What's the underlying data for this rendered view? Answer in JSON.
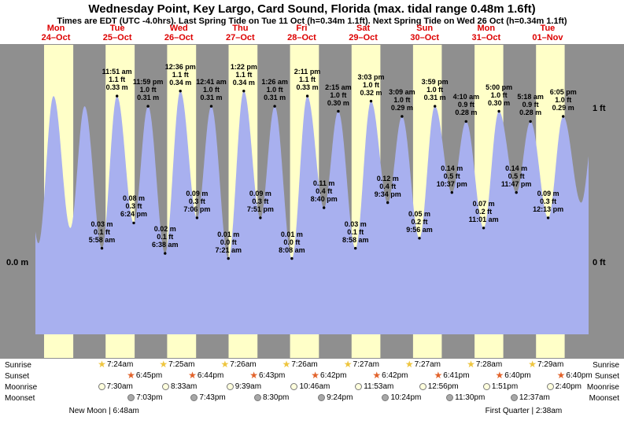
{
  "title": "Wednesday Point, Key Largo, Card Sound, Florida (max. tidal range 0.48m 1.6ft)",
  "subtitle": "Times are EDT (UTC -4.0hrs). Last Spring Tide on Tue 11 Oct (h=0.34m 1.1ft). Next Spring Tide on Wed 26 Oct (h=0.34m 1.1ft)",
  "colors": {
    "band_bg": "#8f8f8f",
    "daylight": "#ffffc8",
    "tide": "#a8b0ef",
    "day_label": "#dd0000",
    "almanac_bg": "#ffffff",
    "sunrise_icon": "#eec53e",
    "sunset_icon": "#e2622a",
    "moonrise_icon": "#ffffdd",
    "moonset_icon": "#a8a8a8"
  },
  "icons": {
    "star": "★"
  },
  "days": [
    {
      "name": "Mon",
      "date": "24–Oct"
    },
    {
      "name": "Tue",
      "date": "25–Oct"
    },
    {
      "name": "Wed",
      "date": "26–Oct"
    },
    {
      "name": "Thu",
      "date": "27–Oct"
    },
    {
      "name": "Fri",
      "date": "28–Oct"
    },
    {
      "name": "Sat",
      "date": "29–Oct"
    },
    {
      "name": "Sun",
      "date": "30–Oct"
    },
    {
      "name": "Mon",
      "date": "31–Oct"
    },
    {
      "name": "Tue",
      "date": "01–Nov"
    }
  ],
  "chart_data": {
    "type": "area",
    "title": "Tide height curve, Wednesday Point, Key Largo, Card Sound, Florida",
    "ylabel_left": "0.0 m",
    "y_right_1ft": "1 ft",
    "y_right_0ft": "0 ft",
    "x_unit": "time (days Mon 24-Oct to Tue 01-Nov)",
    "y_unit_left": "m",
    "y_unit_right": "ft",
    "timeline": {
      "start": 4,
      "end": 220
    },
    "daylight": [
      {
        "day": 0,
        "rise": 7.38,
        "set": 18.77
      },
      {
        "day": 1,
        "rise": 7.4,
        "set": 18.75
      },
      {
        "day": 2,
        "rise": 7.42,
        "set": 18.73
      },
      {
        "day": 3,
        "rise": 7.43,
        "set": 18.72
      },
      {
        "day": 4,
        "rise": 7.43,
        "set": 18.7
      },
      {
        "day": 5,
        "rise": 7.45,
        "set": 18.7
      },
      {
        "day": 6,
        "rise": 7.45,
        "set": 18.68
      },
      {
        "day": 7,
        "rise": 7.47,
        "set": 18.67
      },
      {
        "day": 8,
        "rise": 7.48,
        "set": 18.67
      }
    ],
    "tide_events": [
      {
        "day": -1,
        "hour": 23.0,
        "h": 0.31,
        "type": "high",
        "labeled": false
      },
      {
        "day": 0,
        "hour": 5.17,
        "h": 0.04,
        "type": "low",
        "labeled": false
      },
      {
        "day": 0,
        "hour": 11.08,
        "h": 0.33,
        "type": "high",
        "labeled": false
      },
      {
        "day": 0,
        "hour": 17.62,
        "h": 0.07,
        "type": "low",
        "labeled": false
      },
      {
        "day": 0,
        "hour": 23.22,
        "h": 0.31,
        "type": "high",
        "labeled": false
      },
      {
        "day": 1,
        "hour": 5.97,
        "h": 0.03,
        "type": "low",
        "labeled": true,
        "time": "5:58 am",
        "ft": "0.1 ft",
        "m": "0.03 m"
      },
      {
        "day": 1,
        "hour": 11.85,
        "h": 0.33,
        "type": "high",
        "labeled": true,
        "time": "11:51 am",
        "ft": "1.1 ft",
        "m": "0.33 m"
      },
      {
        "day": 1,
        "hour": 18.4,
        "h": 0.08,
        "type": "low",
        "labeled": true,
        "time": "6:24 pm",
        "ft": "0.3 ft",
        "m": "0.08 m"
      },
      {
        "day": 1,
        "hour": 23.98,
        "h": 0.31,
        "type": "high",
        "labeled": true,
        "time": "11:59 pm",
        "ft": "1.0 ft",
        "m": "0.31 m"
      },
      {
        "day": 2,
        "hour": 6.63,
        "h": 0.02,
        "type": "low",
        "labeled": true,
        "time": "6:38 am",
        "ft": "0.1 ft",
        "m": "0.02 m"
      },
      {
        "day": 2,
        "hour": 12.6,
        "h": 0.34,
        "type": "high",
        "labeled": true,
        "time": "12:36 pm",
        "ft": "1.1 ft",
        "m": "0.34 m"
      },
      {
        "day": 2,
        "hour": 19.1,
        "h": 0.09,
        "type": "low",
        "labeled": true,
        "time": "7:06 pm",
        "ft": "0.3 ft",
        "m": "0.09 m"
      },
      {
        "day": 3,
        "hour": 0.68,
        "h": 0.31,
        "type": "high",
        "labeled": true,
        "time": "12:41 am",
        "ft": "1.0 ft",
        "m": "0.31 m"
      },
      {
        "day": 3,
        "hour": 7.35,
        "h": 0.01,
        "type": "low",
        "labeled": true,
        "time": "7:21 am",
        "ft": "0.0 ft",
        "m": "0.01 m"
      },
      {
        "day": 3,
        "hour": 13.37,
        "h": 0.34,
        "type": "high",
        "labeled": true,
        "time": "1:22 pm",
        "ft": "1.1 ft",
        "m": "0.34 m"
      },
      {
        "day": 3,
        "hour": 19.85,
        "h": 0.09,
        "type": "low",
        "labeled": true,
        "time": "7:51 pm",
        "ft": "0.3 ft",
        "m": "0.09 m"
      },
      {
        "day": 4,
        "hour": 1.43,
        "h": 0.31,
        "type": "high",
        "labeled": true,
        "time": "1:26 am",
        "ft": "1.0 ft",
        "m": "0.31 m"
      },
      {
        "day": 4,
        "hour": 8.13,
        "h": 0.01,
        "type": "low",
        "labeled": true,
        "time": "8:08 am",
        "ft": "0.0 ft",
        "m": "0.01 m"
      },
      {
        "day": 4,
        "hour": 14.18,
        "h": 0.33,
        "type": "high",
        "labeled": true,
        "time": "2:11 pm",
        "ft": "1.1 ft",
        "m": "0.33 m"
      },
      {
        "day": 4,
        "hour": 20.67,
        "h": 0.11,
        "type": "low",
        "labeled": true,
        "time": "8:40 pm",
        "ft": "0.4 ft",
        "m": "0.11 m"
      },
      {
        "day": 5,
        "hour": 2.25,
        "h": 0.3,
        "type": "high",
        "labeled": true,
        "time": "2:15 am",
        "ft": "1.0 ft",
        "m": "0.30 m"
      },
      {
        "day": 5,
        "hour": 8.97,
        "h": 0.03,
        "type": "low",
        "labeled": true,
        "time": "8:58 am",
        "ft": "0.1 ft",
        "m": "0.03 m"
      },
      {
        "day": 5,
        "hour": 15.05,
        "h": 0.32,
        "type": "high",
        "labeled": true,
        "time": "3:03 pm",
        "ft": "1.0 ft",
        "m": "0.32 m"
      },
      {
        "day": 5,
        "hour": 21.57,
        "h": 0.12,
        "type": "low",
        "labeled": true,
        "time": "9:34 pm",
        "ft": "0.4 ft",
        "m": "0.12 m"
      },
      {
        "day": 6,
        "hour": 3.15,
        "h": 0.29,
        "type": "high",
        "labeled": true,
        "time": "3:09 am",
        "ft": "1.0 ft",
        "m": "0.29 m"
      },
      {
        "day": 6,
        "hour": 9.93,
        "h": 0.05,
        "type": "low",
        "labeled": true,
        "time": "9:56 am",
        "ft": "0.2 ft",
        "m": "0.05 m"
      },
      {
        "day": 6,
        "hour": 15.98,
        "h": 0.31,
        "type": "high",
        "labeled": true,
        "time": "3:59 pm",
        "ft": "1.0 ft",
        "m": "0.31 m"
      },
      {
        "day": 6,
        "hour": 22.62,
        "h": 0.14,
        "type": "low",
        "labeled": true,
        "time": "10:37 pm",
        "ft": "0.5 ft",
        "m": "0.14 m"
      },
      {
        "day": 7,
        "hour": 4.17,
        "h": 0.28,
        "type": "high",
        "labeled": true,
        "time": "4:10 am",
        "ft": "0.9 ft",
        "m": "0.28 m"
      },
      {
        "day": 7,
        "hour": 11.02,
        "h": 0.07,
        "type": "low",
        "labeled": true,
        "time": "11:01 am",
        "ft": "0.2 ft",
        "m": "0.07 m"
      },
      {
        "day": 7,
        "hour": 17.0,
        "h": 0.3,
        "type": "high",
        "labeled": true,
        "time": "5:00 pm",
        "ft": "1.0 ft",
        "m": "0.30 m"
      },
      {
        "day": 7,
        "hour": 23.78,
        "h": 0.14,
        "type": "low",
        "labeled": true,
        "time": "11:47 pm",
        "ft": "0.5 ft",
        "m": "0.14 m"
      },
      {
        "day": 8,
        "hour": 5.3,
        "h": 0.28,
        "type": "high",
        "labeled": true,
        "time": "5:18 am",
        "ft": "0.9 ft",
        "m": "0.28 m"
      },
      {
        "day": 8,
        "hour": 12.22,
        "h": 0.09,
        "type": "low",
        "labeled": true,
        "time": "12:13 pm",
        "ft": "0.3 ft",
        "m": "0.09 m"
      },
      {
        "day": 8,
        "hour": 18.08,
        "h": 0.29,
        "type": "high",
        "labeled": true,
        "time": "6:05 pm",
        "ft": "1.0 ft",
        "m": "0.29 m"
      },
      {
        "day": 9,
        "hour": 1.1,
        "h": 0.12,
        "type": "low",
        "labeled": false
      },
      {
        "day": 9,
        "hour": 6.4,
        "h": 0.28,
        "type": "high",
        "labeled": false
      }
    ]
  },
  "almanac": {
    "rows": [
      {
        "id": "sunrise",
        "label": "Sunrise",
        "icon": "star",
        "icon_name": "sunrise-star-icon",
        "icon_color_key": "sunrise_icon",
        "entries": [
          {
            "day": 1,
            "hour": 7.4,
            "time": "7:24am"
          },
          {
            "day": 2,
            "hour": 7.42,
            "time": "7:25am"
          },
          {
            "day": 3,
            "hour": 7.43,
            "time": "7:26am"
          },
          {
            "day": 4,
            "hour": 7.43,
            "time": "7:26am"
          },
          {
            "day": 5,
            "hour": 7.45,
            "time": "7:27am"
          },
          {
            "day": 6,
            "hour": 7.45,
            "time": "7:27am"
          },
          {
            "day": 7,
            "hour": 7.47,
            "time": "7:28am"
          },
          {
            "day": 8,
            "hour": 7.48,
            "time": "7:29am"
          }
        ]
      },
      {
        "id": "sunset",
        "label": "Sunset",
        "icon": "star",
        "icon_name": "sunset-star-icon",
        "icon_color_key": "sunset_icon",
        "entries": [
          {
            "day": 1,
            "hour": 18.75,
            "time": "6:45pm"
          },
          {
            "day": 2,
            "hour": 18.73,
            "time": "6:44pm"
          },
          {
            "day": 3,
            "hour": 18.72,
            "time": "6:43pm"
          },
          {
            "day": 4,
            "hour": 18.7,
            "time": "6:42pm"
          },
          {
            "day": 5,
            "hour": 18.7,
            "time": "6:42pm"
          },
          {
            "day": 6,
            "hour": 18.68,
            "time": "6:41pm"
          },
          {
            "day": 7,
            "hour": 18.67,
            "time": "6:40pm"
          },
          {
            "day": 8,
            "hour": 18.67,
            "time": "6:40pm"
          }
        ]
      },
      {
        "id": "moonrise",
        "label": "Moonrise",
        "icon": "circle",
        "icon_name": "moonrise-icon",
        "icon_color_key": "moonrise_icon",
        "entries": [
          {
            "day": 1,
            "hour": 7.5,
            "time": "7:30am"
          },
          {
            "day": 2,
            "hour": 8.55,
            "time": "8:33am"
          },
          {
            "day": 3,
            "hour": 9.65,
            "time": "9:39am"
          },
          {
            "day": 4,
            "hour": 10.77,
            "time": "10:46am"
          },
          {
            "day": 5,
            "hour": 11.88,
            "time": "11:53am"
          },
          {
            "day": 6,
            "hour": 12.93,
            "time": "12:56pm"
          },
          {
            "day": 7,
            "hour": 13.85,
            "time": "1:51pm"
          },
          {
            "day": 8,
            "hour": 14.67,
            "time": "2:40pm"
          }
        ]
      },
      {
        "id": "moonset",
        "label": "Moonset",
        "icon": "circle",
        "icon_name": "moonset-icon",
        "icon_color_key": "moonset_icon",
        "entries": [
          {
            "day": 1,
            "hour": 19.05,
            "time": "7:03pm"
          },
          {
            "day": 2,
            "hour": 19.72,
            "time": "7:43pm"
          },
          {
            "day": 3,
            "hour": 20.5,
            "time": "8:30pm"
          },
          {
            "day": 4,
            "hour": 21.4,
            "time": "9:24pm"
          },
          {
            "day": 5,
            "hour": 22.4,
            "time": "10:24pm"
          },
          {
            "day": 6,
            "hour": 23.5,
            "time": "11:30pm"
          },
          {
            "day": 8,
            "hour": 0.62,
            "time": "12:37am"
          }
        ]
      }
    ],
    "phases": [
      {
        "label": "New Moon | 6:48am",
        "day": 1,
        "hour": 6.8
      },
      {
        "label": "First Quarter | 2:38am",
        "day": 8,
        "hour": 2.63
      }
    ]
  }
}
